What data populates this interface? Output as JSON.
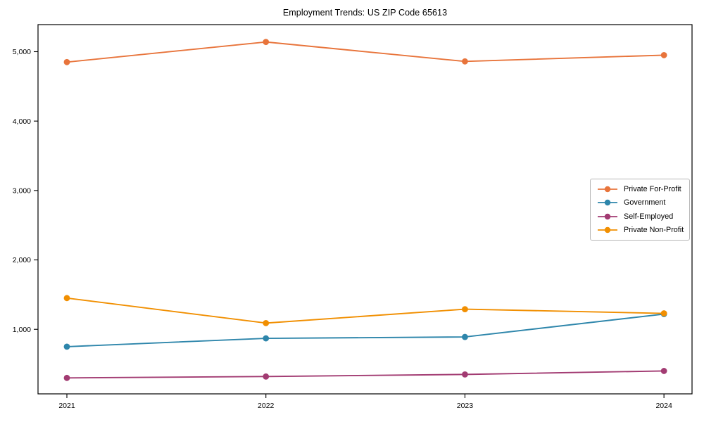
{
  "chart_data": {
    "type": "line",
    "title": "Employment Trends: US ZIP Code 65613",
    "xlabel": "",
    "ylabel": "",
    "x": [
      2021,
      2022,
      2023,
      2024
    ],
    "x_tick_labels": [
      "2021",
      "2022",
      "2023",
      "2024"
    ],
    "y_ticks": [
      1000,
      2000,
      3000,
      4000,
      5000
    ],
    "y_tick_labels": [
      "1,000",
      "2,000",
      "3,000",
      "4,000",
      "5,000"
    ],
    "xlim": [
      2020.855,
      2024.141
    ],
    "ylim": [
      70,
      5390
    ],
    "grid": false,
    "legend_position": "center-right",
    "series": [
      {
        "name": "Private For-Profit",
        "color": "#E8743B",
        "values": [
          4850,
          5140,
          4860,
          4950
        ]
      },
      {
        "name": "Government",
        "color": "#2E86AB",
        "values": [
          750,
          870,
          890,
          1220
        ]
      },
      {
        "name": "Self-Employed",
        "color": "#A23B72",
        "values": [
          300,
          320,
          350,
          400
        ]
      },
      {
        "name": "Private Non-Profit",
        "color": "#F18F01",
        "values": [
          1450,
          1090,
          1290,
          1230
        ]
      }
    ]
  }
}
